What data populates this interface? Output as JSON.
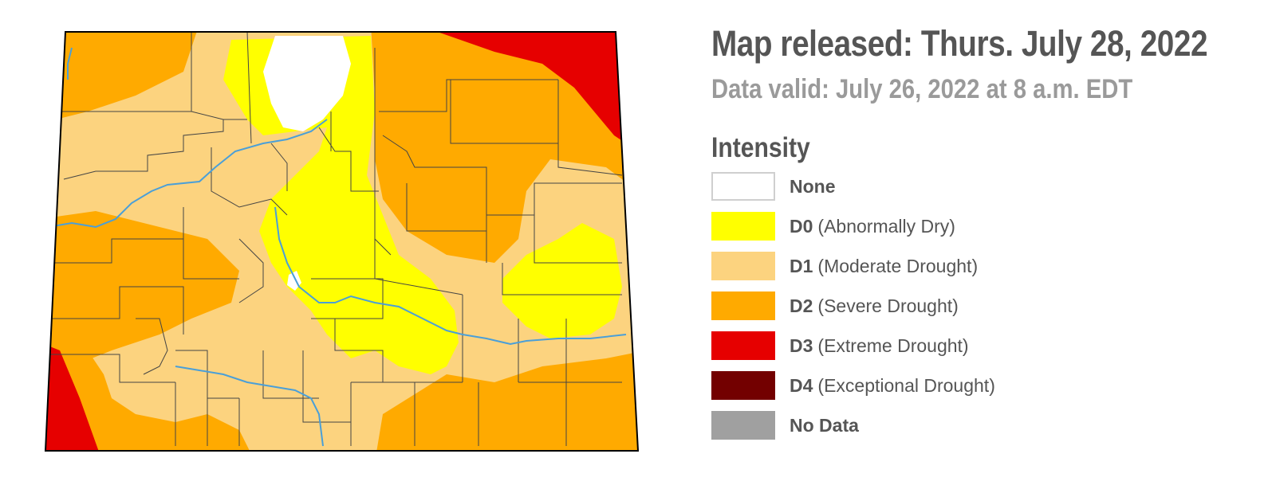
{
  "header": {
    "released": "Map released: Thurs. July 28, 2022",
    "valid": "Data valid: July 26, 2022 at 8 a.m. EDT"
  },
  "legend": {
    "title": "Intensity",
    "items": [
      {
        "code": "None",
        "desc": "",
        "color": "#ffffff",
        "outlined": true
      },
      {
        "code": "D0",
        "desc": "(Abnormally Dry)",
        "color": "#ffff00",
        "outlined": false
      },
      {
        "code": "D1",
        "desc": "(Moderate Drought)",
        "color": "#fcd37f",
        "outlined": false
      },
      {
        "code": "D2",
        "desc": "(Severe Drought)",
        "color": "#ffaa00",
        "outlined": false
      },
      {
        "code": "D3",
        "desc": "(Extreme Drought)",
        "color": "#e60000",
        "outlined": false
      },
      {
        "code": "D4",
        "desc": "(Exceptional Drought)",
        "color": "#730000",
        "outlined": false
      },
      {
        "code": "No Data",
        "desc": "",
        "color": "#a0a0a0",
        "outlined": false
      }
    ]
  },
  "map": {
    "colors": {
      "none": "#ffffff",
      "d0": "#ffff00",
      "d1": "#fcd37f",
      "d2": "#ffaa00",
      "d3": "#e60000",
      "river": "#4a9fd8",
      "border": "#000000",
      "county": "#444444"
    }
  }
}
